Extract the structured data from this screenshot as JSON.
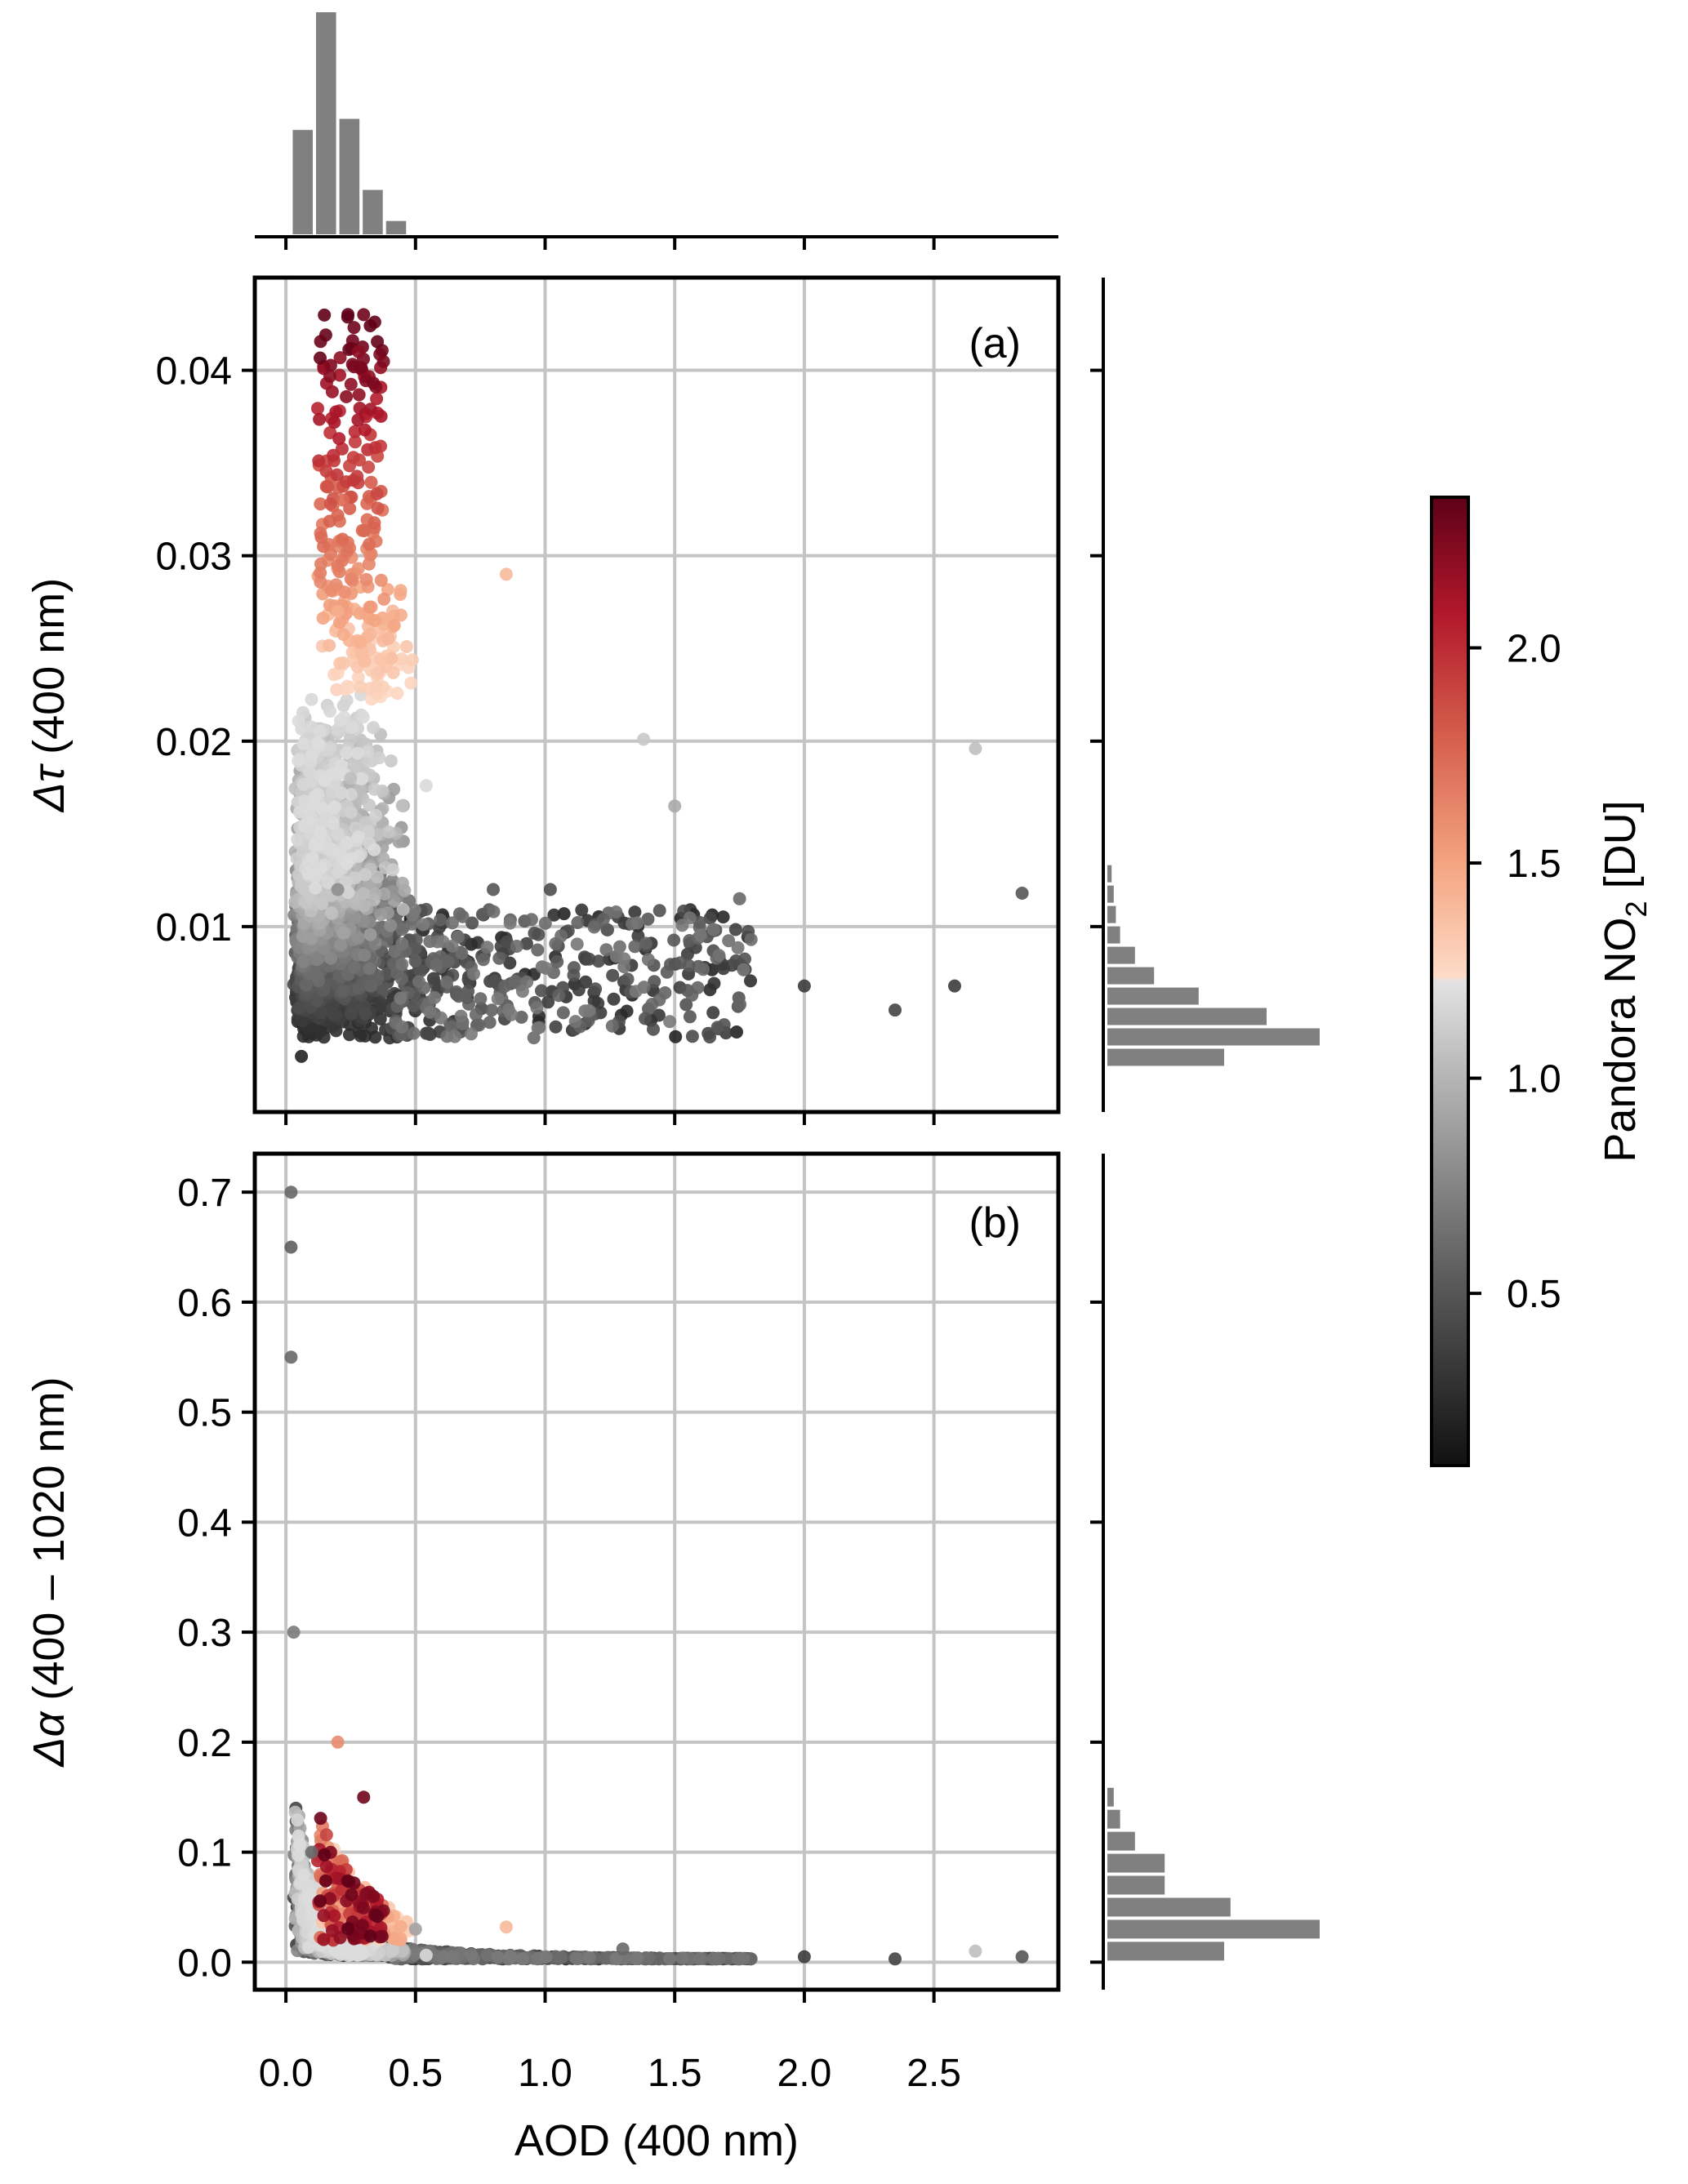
{
  "figure": {
    "x_axis_label": "AOD (400 nm)",
    "panel_a_label": "(a)",
    "panel_b_label": "(b)",
    "ylabel_a_text": "(400 nm)",
    "ylabel_a_symbol": "Δτ",
    "ylabel_b_text": "(400 – 1020 nm)",
    "ylabel_b_symbol": "Δα",
    "colorbar_label_prefix": "Pandora NO",
    "colorbar_label_sub": "2",
    "colorbar_label_suffix": " [DU]"
  },
  "chart_data": [
    {
      "type": "scatter",
      "panel": "a",
      "xlabel": "AOD (400 nm)",
      "ylabel": "Δτ (400 nm)",
      "xlim": [
        -0.12,
        2.98
      ],
      "ylim": [
        0.0,
        0.045
      ],
      "xticks": [
        0.0,
        0.5,
        1.0,
        1.5,
        2.0,
        2.5
      ],
      "yticks": [
        0.01,
        0.02,
        0.03,
        0.04
      ],
      "ytick_labels": [
        "0.01",
        "0.02",
        "0.03",
        "0.04"
      ],
      "grid": true,
      "color_by": "Pandora NO2 [DU]",
      "points_sample": [
        {
          "x": 0.06,
          "y": 0.003,
          "c": 0.2
        },
        {
          "x": 0.12,
          "y": 0.006,
          "c": 0.5
        },
        {
          "x": 0.2,
          "y": 0.012,
          "c": 0.8
        },
        {
          "x": 0.25,
          "y": 0.018,
          "c": 1.05
        },
        {
          "x": 0.2,
          "y": 0.027,
          "c": 1.45
        },
        {
          "x": 0.22,
          "y": 0.033,
          "c": 1.75
        },
        {
          "x": 0.3,
          "y": 0.043,
          "c": 2.3
        },
        {
          "x": 0.28,
          "y": 0.041,
          "c": 2.2
        },
        {
          "x": 0.8,
          "y": 0.012,
          "c": 0.5
        },
        {
          "x": 0.85,
          "y": 0.029,
          "c": 1.4
        },
        {
          "x": 1.02,
          "y": 0.012,
          "c": 0.45
        },
        {
          "x": 1.38,
          "y": 0.0201,
          "c": 1.1
        },
        {
          "x": 1.5,
          "y": 0.0165,
          "c": 0.95
        },
        {
          "x": 1.75,
          "y": 0.0115,
          "c": 0.6
        },
        {
          "x": 2.0,
          "y": 0.0068,
          "c": 0.35
        },
        {
          "x": 2.35,
          "y": 0.0055,
          "c": 0.4
        },
        {
          "x": 2.58,
          "y": 0.0068,
          "c": 0.35
        },
        {
          "x": 2.66,
          "y": 0.0196,
          "c": 1.05
        },
        {
          "x": 2.84,
          "y": 0.0118,
          "c": 0.5
        }
      ]
    },
    {
      "type": "scatter",
      "panel": "b",
      "xlabel": "AOD (400 nm)",
      "ylabel": "Δα (400 – 1020 nm)",
      "xlim": [
        -0.12,
        2.98
      ],
      "ylim": [
        -0.025,
        0.735
      ],
      "xticks": [
        0.0,
        0.5,
        1.0,
        1.5,
        2.0,
        2.5
      ],
      "xtick_labels": [
        "0.0",
        "0.5",
        "1.0",
        "1.5",
        "2.0",
        "2.5"
      ],
      "yticks": [
        0.0,
        0.1,
        0.2,
        0.3,
        0.4,
        0.5,
        0.6,
        0.7
      ],
      "ytick_labels": [
        "0.0",
        "0.1",
        "0.2",
        "0.3",
        "0.4",
        "0.5",
        "0.6",
        "0.7"
      ],
      "grid": true,
      "color_by": "Pandora NO2 [DU]",
      "points_sample": [
        {
          "x": 0.02,
          "y": 0.7,
          "c": 0.6
        },
        {
          "x": 0.02,
          "y": 0.65,
          "c": 0.55
        },
        {
          "x": 0.02,
          "y": 0.55,
          "c": 0.6
        },
        {
          "x": 0.03,
          "y": 0.3,
          "c": 0.7
        },
        {
          "x": 0.1,
          "y": 0.1,
          "c": 0.6
        },
        {
          "x": 0.2,
          "y": 0.2,
          "c": 1.6
        },
        {
          "x": 0.3,
          "y": 0.15,
          "c": 2.3
        },
        {
          "x": 0.5,
          "y": 0.03,
          "c": 0.9
        },
        {
          "x": 0.85,
          "y": 0.032,
          "c": 1.4
        },
        {
          "x": 1.3,
          "y": 0.012,
          "c": 0.6
        },
        {
          "x": 2.0,
          "y": 0.005,
          "c": 0.35
        },
        {
          "x": 2.35,
          "y": 0.003,
          "c": 0.4
        },
        {
          "x": 2.66,
          "y": 0.01,
          "c": 1.05
        },
        {
          "x": 2.84,
          "y": 0.005,
          "c": 0.5
        }
      ]
    },
    {
      "type": "bar",
      "panel": "top-marginal",
      "orientation": "vertical",
      "description_of_axis": "AOD (400 nm) distribution",
      "bin_edges": [
        0.02,
        0.11,
        0.2,
        0.29,
        0.38,
        0.47
      ],
      "values": [
        0.47,
        1.0,
        0.52,
        0.2,
        0.06
      ]
    },
    {
      "type": "bar",
      "panel": "right-marginal-a",
      "orientation": "horizontal",
      "bin_edges": [
        0.0024,
        0.0035,
        0.0046,
        0.0057,
        0.0068,
        0.0079,
        0.009,
        0.0101,
        0.0112,
        0.0123,
        0.0134
      ],
      "values": [
        0.55,
        1.0,
        0.75,
        0.43,
        0.22,
        0.13,
        0.06,
        0.04,
        0.03,
        0.02
      ]
    },
    {
      "type": "bar",
      "panel": "right-marginal-b",
      "orientation": "horizontal",
      "bin_edges": [
        0.0,
        0.02,
        0.04,
        0.06,
        0.08,
        0.1,
        0.12,
        0.14,
        0.16
      ],
      "values": [
        0.55,
        1.0,
        0.58,
        0.27,
        0.27,
        0.13,
        0.06,
        0.03
      ]
    },
    {
      "type": "heatmap",
      "panel": "colorbar",
      "colormap": "RdGy_r",
      "colors": [
        "#1a1a1a",
        "#878787",
        "#e0e0e0",
        "#fddbc7",
        "#f4a582",
        "#d6604d",
        "#b2182b",
        "#67001f"
      ],
      "range": [
        0.1,
        2.35
      ],
      "ticks": [
        0.5,
        1.0,
        1.5,
        2.0
      ],
      "tick_labels": [
        "0.5",
        "1.0",
        "1.5",
        "2.0"
      ],
      "label": "Pandora NO2 [DU]"
    }
  ]
}
